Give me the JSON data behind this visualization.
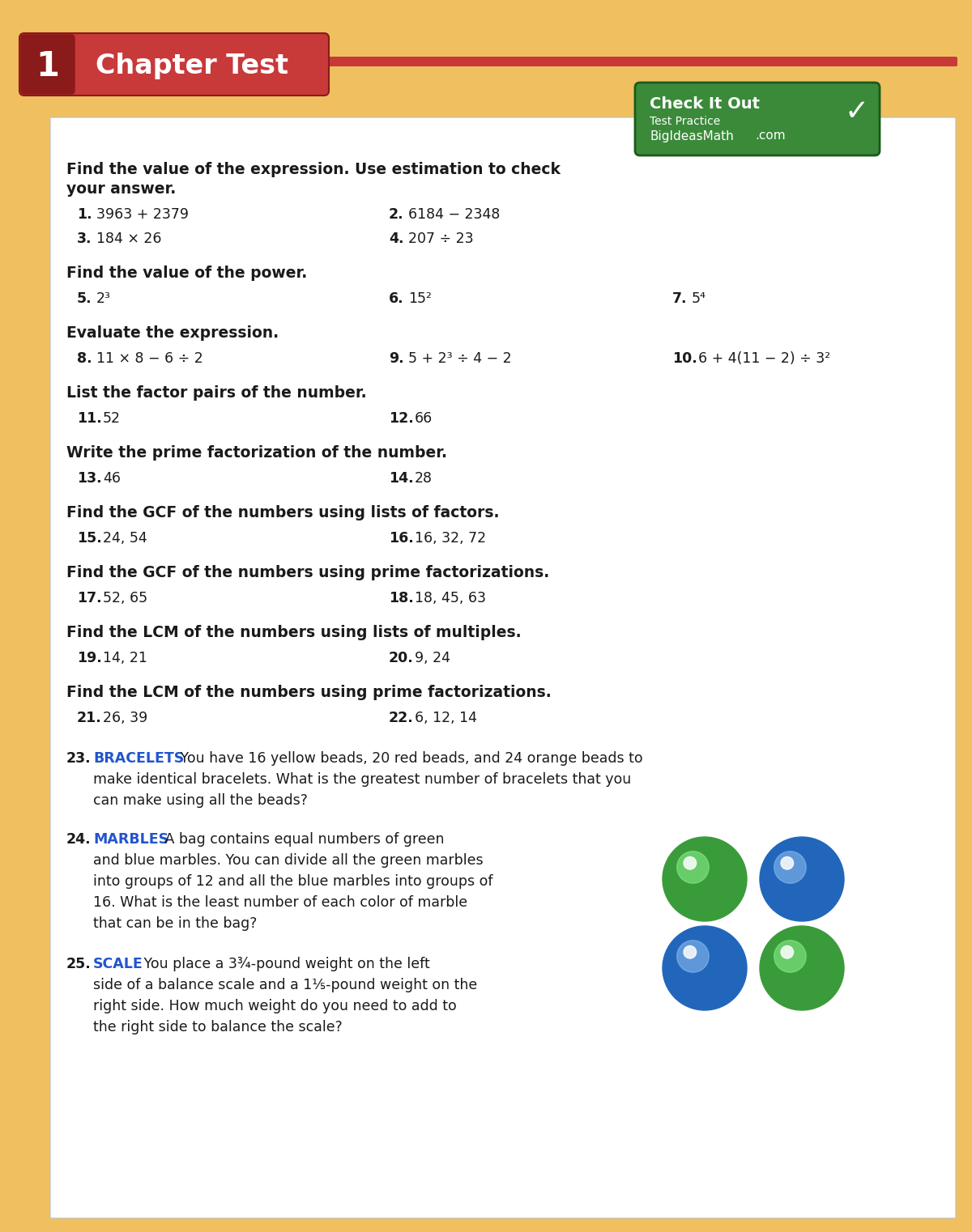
{
  "bg_color": "#F0C060",
  "page_bg": "#FFFFFF",
  "chapter_num": "1",
  "chapter_title": "Chapter Test",
  "header_red_light": "#C8393A",
  "header_red_dark": "#8B1A1A",
  "check_bg": "#3A8A3A",
  "blue_keyword": "#2255CC",
  "text_color": "#1A1A1A",
  "section_headers": [
    "Find the value of the expression. Use estimation to check\nyour answer.",
    "Find the value of the power.",
    "Evaluate the expression.",
    "List the factor pairs of the number.",
    "Write the prime factorization of the number.",
    "Find the GCF of the numbers using lists of factors.",
    "Find the GCF of the numbers using prime factorizations.",
    "Find the LCM of the numbers using lists of multiples.",
    "Find the LCM of the numbers using prime factorizations."
  ]
}
